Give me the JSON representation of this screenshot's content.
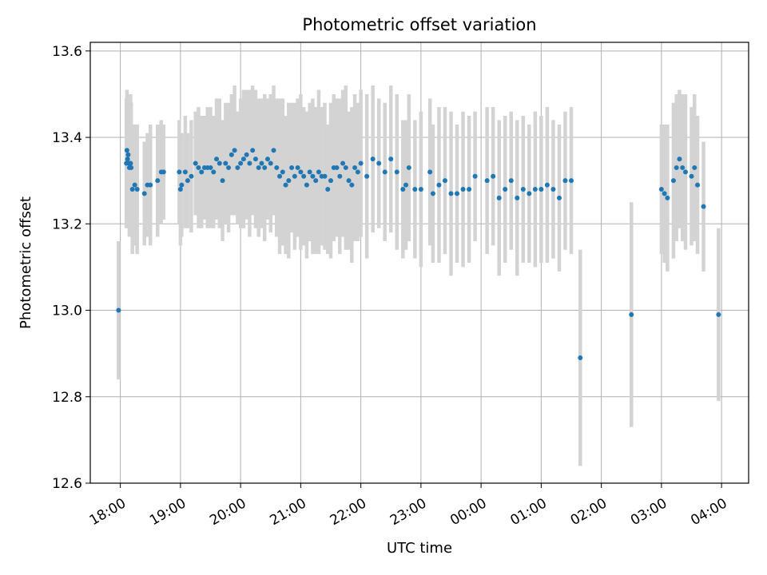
{
  "chart_data": {
    "type": "scatter",
    "title": "Photometric offset variation",
    "xlabel": "UTC time",
    "ylabel": "Photometric offset",
    "ylim": [
      12.6,
      13.62
    ],
    "yticks": [
      "12.6",
      "12.8",
      "13.0",
      "13.2",
      "13.4",
      "13.6"
    ],
    "xticks": [
      "18:00",
      "19:00",
      "20:00",
      "21:00",
      "22:00",
      "23:00",
      "00:00",
      "01:00",
      "02:00",
      "03:00",
      "04:00"
    ],
    "xtick_hours": [
      0,
      1,
      2,
      3,
      4,
      5,
      6,
      7,
      8,
      9,
      10
    ],
    "xlim_hours": [
      -0.5,
      10.45
    ],
    "x_unit": "hours after 18:00 UTC",
    "grid": true,
    "colors": {
      "points": "#1f77b4",
      "errorbars": "#d3d3d3",
      "grid": "#b0b0b0"
    },
    "series": [
      {
        "x": [
          -0.03,
          0.1,
          0.11,
          0.12,
          0.13,
          0.14,
          0.15,
          0.16,
          0.17,
          0.18,
          0.2,
          0.24,
          0.28,
          0.4,
          0.45,
          0.5,
          0.62,
          0.68,
          0.72,
          0.98,
          1.0,
          1.02,
          1.08,
          1.12,
          1.18,
          1.25,
          1.3,
          1.35,
          1.4,
          1.45,
          1.5,
          1.55,
          1.6,
          1.65,
          1.7,
          1.75,
          1.8,
          1.85,
          1.9,
          1.95,
          2.0,
          2.05,
          2.1,
          2.15,
          2.2,
          2.25,
          2.3,
          2.35,
          2.4,
          2.45,
          2.5,
          2.55,
          2.6,
          2.65,
          2.7,
          2.75,
          2.8,
          2.85,
          2.9,
          2.95,
          3.0,
          3.05,
          3.1,
          3.15,
          3.2,
          3.25,
          3.3,
          3.35,
          3.4,
          3.45,
          3.5,
          3.55,
          3.6,
          3.65,
          3.7,
          3.75,
          3.8,
          3.85,
          3.9,
          3.95,
          4.0,
          4.1,
          4.2,
          4.3,
          4.4,
          4.5,
          4.6,
          4.7,
          4.75,
          4.8,
          4.9,
          5.0,
          5.15,
          5.2,
          5.3,
          5.4,
          5.5,
          5.6,
          5.7,
          5.8,
          5.9,
          6.1,
          6.2,
          6.3,
          6.4,
          6.5,
          6.6,
          6.7,
          6.8,
          6.9,
          7.0,
          7.1,
          7.2,
          7.3,
          7.4,
          7.5,
          7.65,
          8.5,
          9.0,
          9.05,
          9.1,
          9.2,
          9.25,
          9.3,
          9.35,
          9.4,
          9.5,
          9.55,
          9.6,
          9.7,
          9.95
        ],
        "y": [
          13.0,
          13.34,
          13.37,
          13.35,
          13.36,
          13.34,
          13.33,
          13.34,
          13.34,
          13.33,
          13.28,
          13.29,
          13.28,
          13.27,
          13.29,
          13.29,
          13.3,
          13.32,
          13.32,
          13.32,
          13.28,
          13.29,
          13.32,
          13.3,
          13.31,
          13.34,
          13.33,
          13.32,
          13.33,
          13.33,
          13.33,
          13.32,
          13.35,
          13.34,
          13.3,
          13.34,
          13.33,
          13.36,
          13.37,
          13.33,
          13.34,
          13.35,
          13.36,
          13.34,
          13.37,
          13.35,
          13.33,
          13.34,
          13.33,
          13.35,
          13.34,
          13.37,
          13.33,
          13.31,
          13.32,
          13.29,
          13.3,
          13.33,
          13.31,
          13.33,
          13.32,
          13.31,
          13.29,
          13.32,
          13.31,
          13.3,
          13.32,
          13.31,
          13.31,
          13.28,
          13.3,
          13.33,
          13.33,
          13.31,
          13.34,
          13.33,
          13.3,
          13.29,
          13.33,
          13.32,
          13.34,
          13.31,
          13.35,
          13.34,
          13.32,
          13.35,
          13.32,
          13.28,
          13.29,
          13.33,
          13.28,
          13.28,
          13.32,
          13.27,
          13.29,
          13.3,
          13.27,
          13.27,
          13.28,
          13.28,
          13.31,
          13.3,
          13.31,
          13.26,
          13.28,
          13.3,
          13.26,
          13.28,
          13.27,
          13.28,
          13.28,
          13.29,
          13.28,
          13.26,
          13.3,
          13.3,
          12.89,
          12.99,
          13.28,
          13.27,
          13.26,
          13.3,
          13.33,
          13.35,
          13.33,
          13.32,
          13.31,
          13.33,
          13.29,
          13.24,
          12.99
        ],
        "yerr": [
          0.16,
          0.15,
          0.14,
          0.15,
          0.14,
          0.15,
          0.16,
          0.15,
          0.16,
          0.15,
          0.15,
          0.14,
          0.15,
          0.12,
          0.12,
          0.14,
          0.13,
          0.12,
          0.11,
          0.12,
          0.13,
          0.12,
          0.13,
          0.11,
          0.13,
          0.12,
          0.14,
          0.13,
          0.12,
          0.14,
          0.14,
          0.13,
          0.14,
          0.15,
          0.14,
          0.14,
          0.15,
          0.14,
          0.15,
          0.13,
          0.15,
          0.16,
          0.15,
          0.17,
          0.15,
          0.16,
          0.16,
          0.15,
          0.17,
          0.14,
          0.16,
          0.15,
          0.16,
          0.18,
          0.17,
          0.16,
          0.18,
          0.15,
          0.17,
          0.16,
          0.18,
          0.16,
          0.17,
          0.16,
          0.18,
          0.17,
          0.19,
          0.16,
          0.17,
          0.15,
          0.18,
          0.17,
          0.16,
          0.18,
          0.17,
          0.19,
          0.16,
          0.18,
          0.17,
          0.16,
          0.17,
          0.19,
          0.17,
          0.15,
          0.16,
          0.17,
          0.18,
          0.16,
          0.15,
          0.17,
          0.16,
          0.18,
          0.17,
          0.16,
          0.18,
          0.17,
          0.19,
          0.16,
          0.18,
          0.17,
          0.15,
          0.17,
          0.16,
          0.18,
          0.17,
          0.16,
          0.18,
          0.17,
          0.16,
          0.18,
          0.17,
          0.18,
          0.16,
          0.17,
          0.16,
          0.17,
          0.25,
          0.26,
          0.15,
          0.16,
          0.17,
          0.18,
          0.17,
          0.16,
          0.17,
          0.18,
          0.16,
          0.17,
          0.16,
          0.15,
          0.2
        ]
      }
    ]
  }
}
